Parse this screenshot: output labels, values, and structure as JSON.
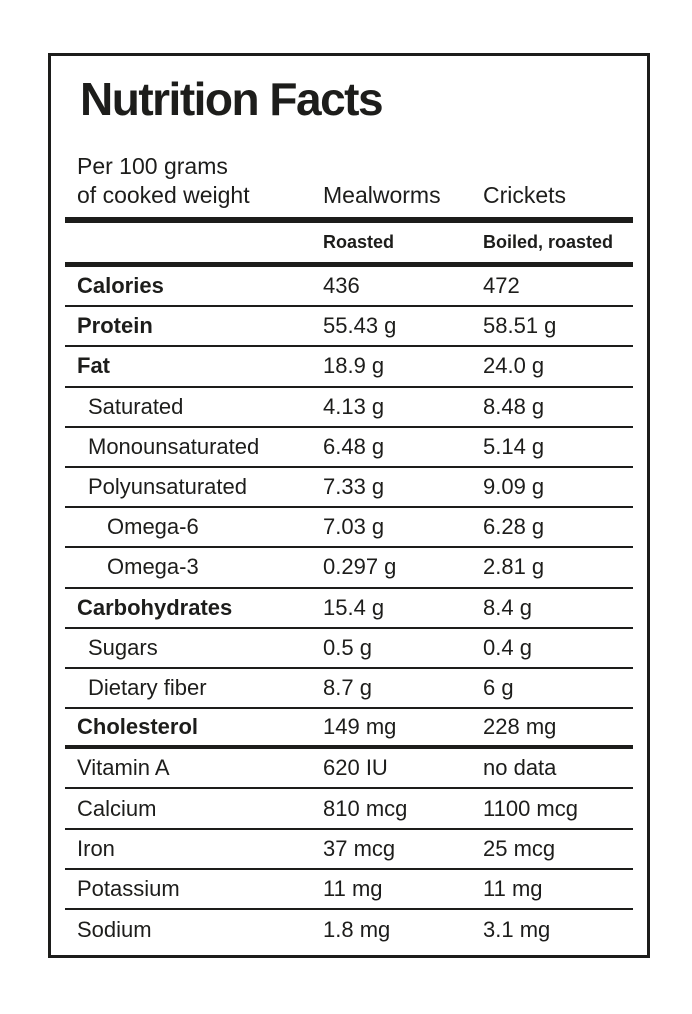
{
  "title": "Nutrition Facts",
  "serving": {
    "line1": "Per 100 grams",
    "line2": "of cooked weight"
  },
  "columns": {
    "col1": "Mealworms",
    "col2": "Crickets"
  },
  "preparation": {
    "col1": "Roasted",
    "col2": "Boiled, roasted"
  },
  "colors": {
    "ink": "#1d1d1b",
    "background": "#ffffff"
  },
  "table": {
    "rows": [
      {
        "label": "Calories",
        "mealworms": "436",
        "crickets": "472"
      },
      {
        "label": "Protein",
        "mealworms": "55.43 g",
        "crickets": "58.51 g"
      },
      {
        "label": "Fat",
        "mealworms": "18.9 g",
        "crickets": "24.0 g"
      },
      {
        "label": "Saturated",
        "mealworms": "4.13 g",
        "crickets": "8.48 g"
      },
      {
        "label": "Monounsaturated",
        "mealworms": "6.48 g",
        "crickets": "5.14 g"
      },
      {
        "label": "Polyunsaturated",
        "mealworms": "7.33 g",
        "crickets": "9.09 g"
      },
      {
        "label": "Omega-6",
        "mealworms": "7.03 g",
        "crickets": "6.28 g"
      },
      {
        "label": "Omega-3",
        "mealworms": "0.297 g",
        "crickets": "2.81 g"
      },
      {
        "label": "Carbohydrates",
        "mealworms": "15.4 g",
        "crickets": "8.4 g"
      },
      {
        "label": "Sugars",
        "mealworms": "0.5 g",
        "crickets": "0.4 g"
      },
      {
        "label": "Dietary fiber",
        "mealworms": "8.7 g",
        "crickets": "6 g"
      },
      {
        "label": "Cholesterol",
        "mealworms": "149 mg",
        "crickets": "228 mg"
      },
      {
        "label": "Vitamin A",
        "mealworms": "620 IU",
        "crickets": "no data"
      },
      {
        "label": "Calcium",
        "mealworms": "810 mcg",
        "crickets": "1100 mcg"
      },
      {
        "label": "Iron",
        "mealworms": "37 mcg",
        "crickets": "25 mcg"
      },
      {
        "label": "Potassium",
        "mealworms": "11 mg",
        "crickets": "11 mg"
      },
      {
        "label": "Sodium",
        "mealworms": "1.8 mg",
        "crickets": "3.1 mg"
      }
    ]
  }
}
